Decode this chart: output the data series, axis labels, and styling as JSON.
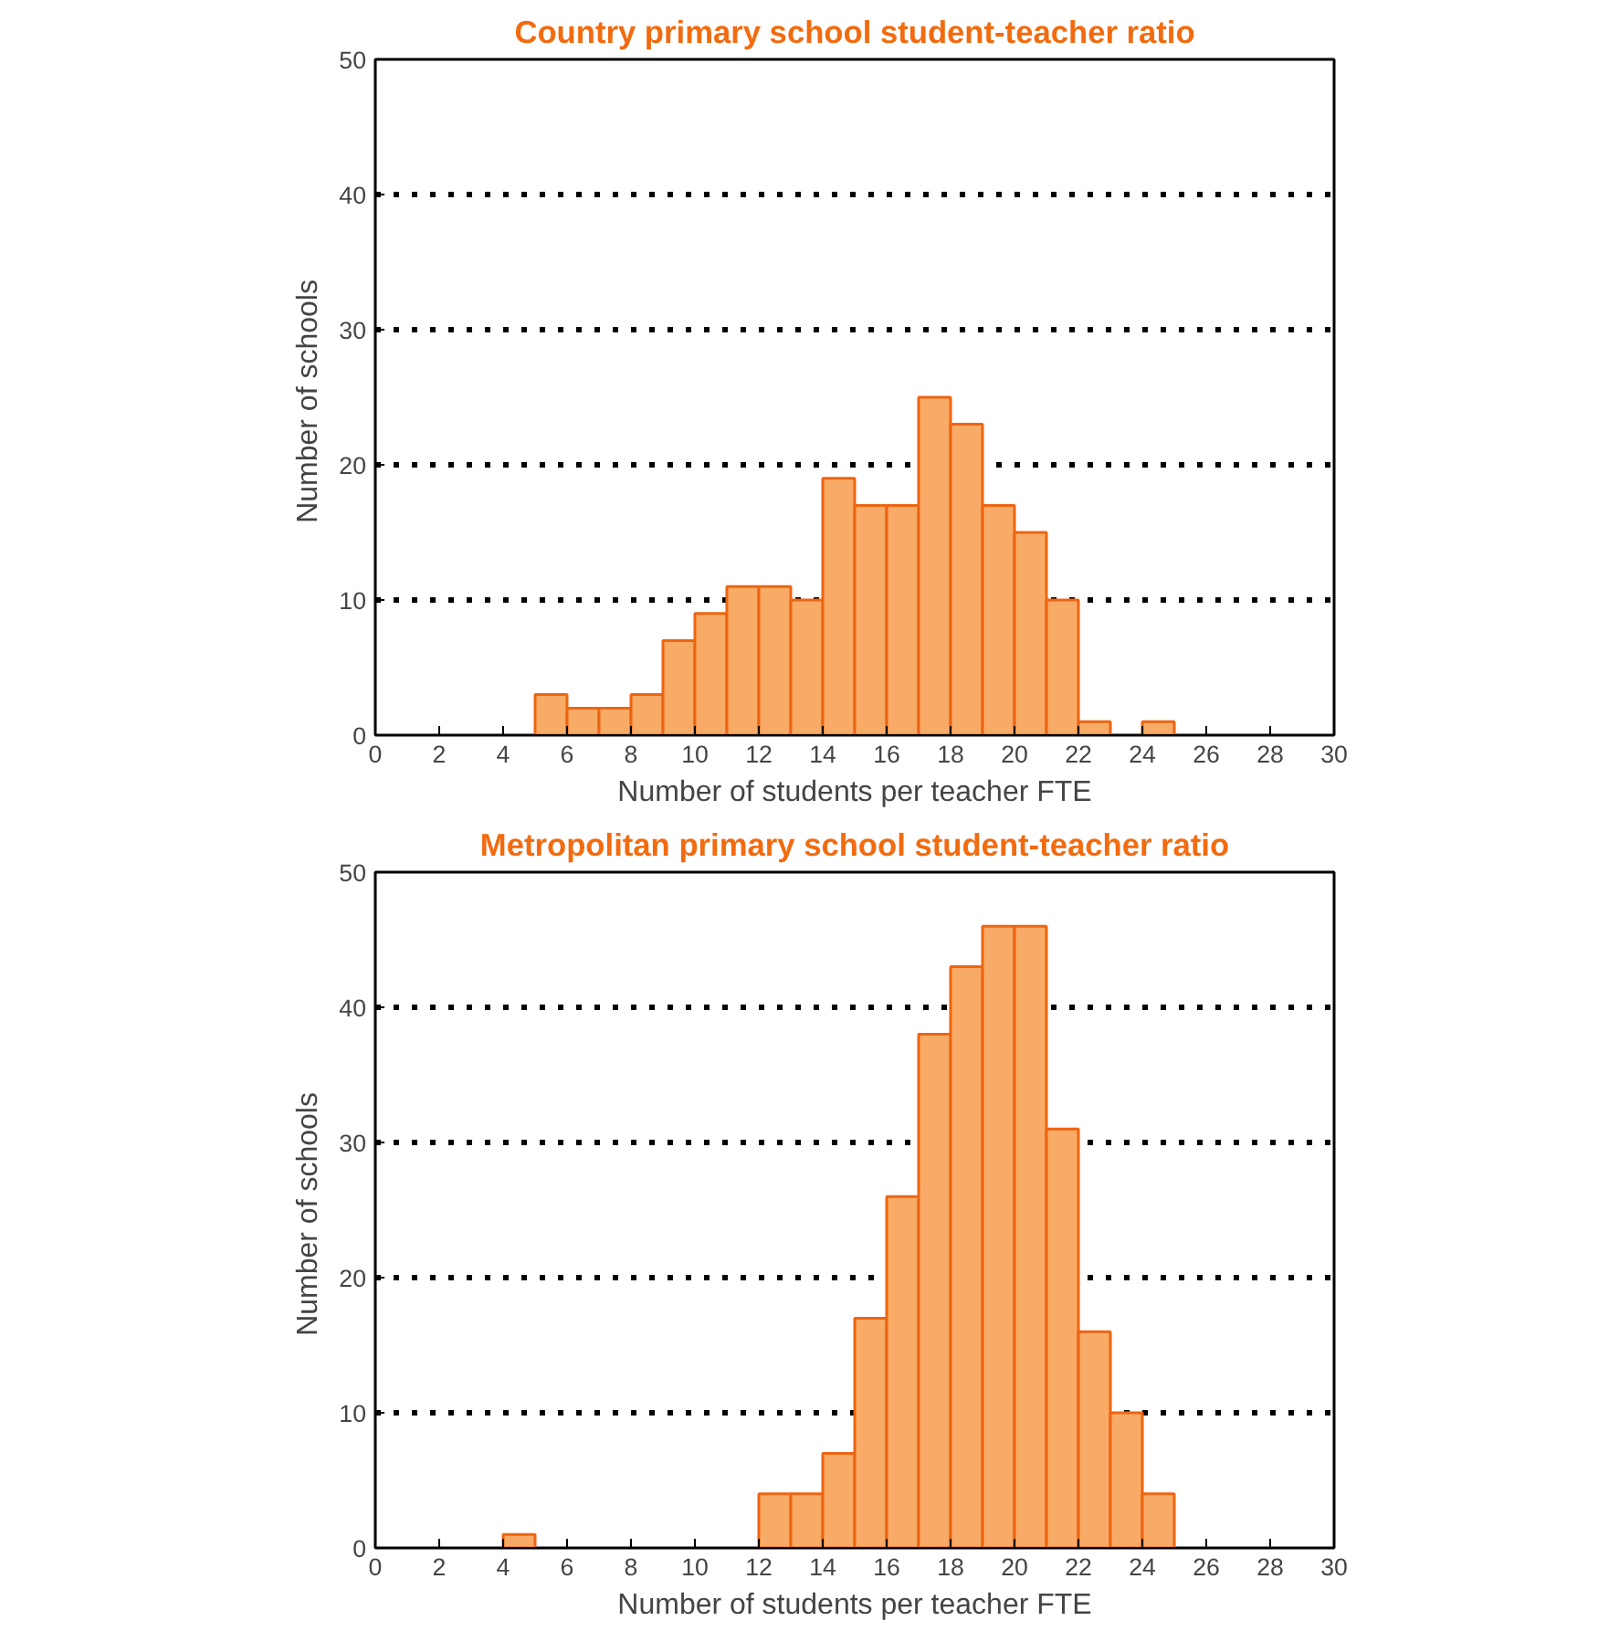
{
  "chart_data": [
    {
      "type": "histogram",
      "title": "Country primary school student-teacher ratio",
      "xlabel": "Number of students per teacher FTE",
      "ylabel": "Number of  schools",
      "bins": [
        5,
        6,
        7,
        8,
        9,
        10,
        11,
        12,
        13,
        14,
        15,
        16,
        17,
        18,
        19,
        20,
        21,
        22,
        23,
        24,
        25
      ],
      "values": [
        3,
        2,
        2,
        3,
        7,
        9,
        11,
        11,
        10,
        19,
        17,
        17,
        25,
        23,
        17,
        15,
        10,
        1,
        0,
        1
      ],
      "color": "#f7ab66",
      "xlim": [
        0,
        30
      ],
      "xticks": [
        0,
        2,
        4,
        6,
        8,
        10,
        12,
        14,
        16,
        18,
        20,
        22,
        24,
        26,
        28,
        30
      ],
      "ylim": [
        0,
        50
      ],
      "yticks": [
        0,
        10,
        20,
        30,
        40,
        50
      ],
      "grid": "y"
    },
    {
      "type": "histogram",
      "title": "Metropolitan primary school student-teacher ratio",
      "xlabel": "Number of students per teacher FTE",
      "ylabel": "Number of  schools",
      "bins": [
        4,
        5,
        6,
        7,
        8,
        9,
        10,
        11,
        12,
        13,
        14,
        15,
        16,
        17,
        18,
        19,
        20,
        21,
        22,
        23,
        24,
        25
      ],
      "values": [
        1,
        0,
        0,
        0,
        0,
        0,
        0,
        0,
        4,
        4,
        7,
        17,
        26,
        38,
        43,
        46,
        46,
        31,
        16,
        10,
        4
      ],
      "color": "#f7ab66",
      "xlim": [
        0,
        30
      ],
      "xticks": [
        0,
        2,
        4,
        6,
        8,
        10,
        12,
        14,
        16,
        18,
        20,
        22,
        24,
        26,
        28,
        30
      ],
      "ylim": [
        0,
        50
      ],
      "yticks": [
        0,
        10,
        20,
        30,
        40,
        50
      ],
      "grid": "y"
    }
  ]
}
